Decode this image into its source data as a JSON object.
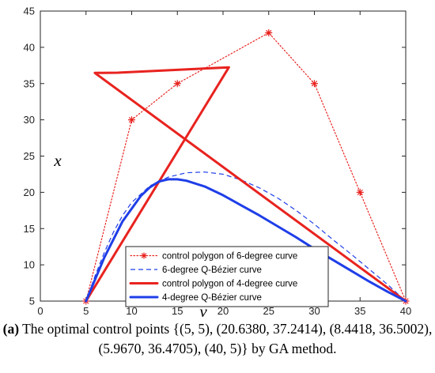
{
  "chart_data": {
    "type": "line",
    "title": "",
    "xlabel": "v",
    "ylabel": "x",
    "xlim": [
      0,
      40
    ],
    "ylim": [
      5,
      45
    ],
    "xticks": [
      0,
      5,
      10,
      15,
      20,
      25,
      30,
      35,
      40
    ],
    "yticks": [
      5,
      10,
      15,
      20,
      25,
      30,
      35,
      40,
      45
    ],
    "grid": false,
    "legend_position": "bottom-center",
    "series": [
      {
        "name": "control polygon of 6-degree curve",
        "style": "dotted",
        "marker": "*",
        "color": "#e8231f",
        "x": [
          5,
          10,
          15,
          25,
          30,
          35,
          40
        ],
        "y": [
          5,
          30,
          35,
          42,
          35,
          20,
          5
        ]
      },
      {
        "name": "6-degree Q-Bézier curve",
        "style": "dashed",
        "marker": "",
        "color": "#1f3ee8",
        "x": [
          5,
          6,
          7,
          8,
          9,
          10,
          12,
          14,
          16,
          18,
          20,
          22,
          24,
          26,
          28,
          30,
          32,
          34,
          36,
          38,
          40
        ],
        "y": [
          5,
          8.5,
          11.7,
          14.5,
          16.8,
          18.6,
          20.9,
          22.1,
          22.7,
          22.8,
          22.5,
          21.7,
          20.6,
          19.2,
          17.5,
          15.6,
          13.5,
          11.5,
          9.4,
          7.3,
          5
        ]
      },
      {
        "name": "control polygon of 4-degree curve",
        "style": "solid",
        "marker": "",
        "color": "#e8231f",
        "x": [
          5,
          20.638,
          8.4418,
          5.967,
          40
        ],
        "y": [
          5,
          37.2414,
          36.5002,
          36.4705,
          5
        ]
      },
      {
        "name": "4-degree Q-Bézier curve",
        "style": "solid",
        "marker": "",
        "color": "#1f3ee8",
        "x": [
          5,
          7,
          9,
          11,
          12,
          13,
          14,
          15,
          16,
          18,
          20,
          22,
          24,
          26,
          28,
          30,
          32,
          34,
          36,
          38,
          40
        ],
        "y": [
          5,
          11.0,
          16.0,
          19.5,
          20.7,
          21.5,
          21.8,
          21.8,
          21.6,
          20.8,
          19.6,
          18.2,
          16.8,
          15.3,
          13.8,
          12.2,
          10.7,
          9.2,
          7.7,
          6.3,
          5
        ]
      }
    ]
  },
  "caption": {
    "tag": "(a)",
    "text": "The optimal control points {(5, 5), (20.6380, 37.2414), (8.4418, 36.5002), (5.9670, 36.4705), (40, 5)} by GA method."
  }
}
